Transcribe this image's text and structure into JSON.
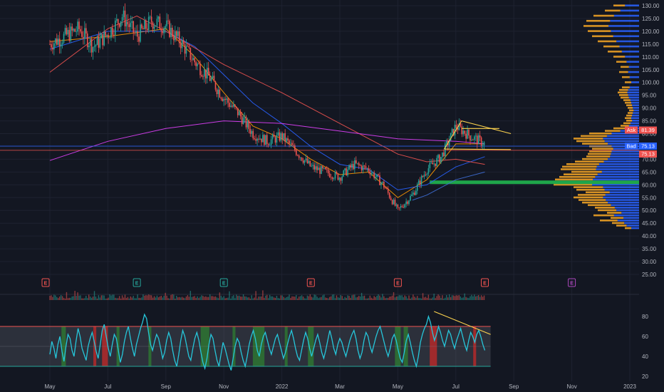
{
  "chart_data": [
    {
      "type": "candlestick",
      "panel": "price",
      "price_scale": {
        "min": 25,
        "max": 130,
        "ticks": [
          "130.00",
          "125.00",
          "120.00",
          "115.00",
          "110.00",
          "105.00",
          "100.00",
          "95.00",
          "90.00",
          "85.00",
          "80.00",
          "75.00",
          "70.00",
          "65.00",
          "60.00",
          "55.00",
          "50.00",
          "45.00",
          "40.00",
          "35.00",
          "30.00",
          "25.00"
        ],
        "tick_values": [
          130,
          125,
          120,
          115,
          110,
          105,
          100,
          95,
          90,
          85,
          80,
          75,
          70,
          65,
          60,
          55,
          50,
          45,
          40,
          35,
          30,
          25
        ]
      },
      "time_axis": {
        "labels": [
          "May",
          "Jul",
          "Sep",
          "Nov",
          "2022",
          "Mar",
          "May",
          "Jul",
          "Sep",
          "Nov",
          "2023"
        ],
        "months_from_start": [
          0,
          2,
          4,
          6,
          8,
          10,
          12,
          14,
          16,
          18,
          20
        ]
      },
      "price_path": [
        [
          0,
          115
        ],
        [
          0.5,
          118
        ],
        [
          1,
          121
        ],
        [
          1.5,
          114
        ],
        [
          2,
          119
        ],
        [
          2.5,
          126
        ],
        [
          3,
          118
        ],
        [
          3.5,
          124
        ],
        [
          4,
          122
        ],
        [
          4.5,
          116
        ],
        [
          5,
          108
        ],
        [
          5.5,
          102
        ],
        [
          6,
          94
        ],
        [
          6.5,
          88
        ],
        [
          7,
          80
        ],
        [
          7.5,
          77
        ],
        [
          8,
          79
        ],
        [
          8.5,
          73
        ],
        [
          9,
          67
        ],
        [
          9.5,
          65
        ],
        [
          10,
          63
        ],
        [
          10.5,
          68
        ],
        [
          11,
          66
        ],
        [
          11.5,
          60
        ],
        [
          12,
          50
        ],
        [
          12.5,
          56
        ],
        [
          13,
          66
        ],
        [
          13.5,
          71
        ],
        [
          14,
          83
        ],
        [
          14.5,
          79
        ],
        [
          15,
          76
        ]
      ],
      "moving_averages": [
        {
          "color": "#ff9800",
          "path": [
            [
              0,
              116
            ],
            [
              2,
              118
            ],
            [
              4,
              121
            ],
            [
              5,
              110
            ],
            [
              6,
              96
            ],
            [
              7,
              83
            ],
            [
              8,
              78
            ],
            [
              9,
              70
            ],
            [
              10,
              64
            ],
            [
              11,
              65
            ],
            [
              12,
              55
            ],
            [
              13,
              62
            ],
            [
              14,
              76
            ],
            [
              15,
              76
            ]
          ]
        },
        {
          "color": "#2962ff",
          "path": [
            [
              0,
              113
            ],
            [
              2,
              120
            ],
            [
              4,
              120
            ],
            [
              5,
              114
            ],
            [
              6,
              103
            ],
            [
              7,
              92
            ],
            [
              8,
              84
            ],
            [
              9,
              75
            ],
            [
              10,
              68
            ],
            [
              11,
              66
            ],
            [
              12,
              58
            ],
            [
              13,
              60
            ],
            [
              14,
              67
            ],
            [
              15,
              71
            ]
          ]
        },
        {
          "color": "#ef5350",
          "path": [
            [
              0,
              104
            ],
            [
              2,
              121
            ],
            [
              3,
              126
            ],
            [
              4,
              120
            ],
            [
              6,
              107
            ],
            [
              8,
              96
            ],
            [
              10,
              84
            ],
            [
              11,
              78
            ],
            [
              12,
              72
            ],
            [
              13,
              69
            ],
            [
              14,
              70
            ],
            [
              15,
              68
            ]
          ]
        },
        {
          "color": "#e040fb",
          "path": [
            [
              0,
              69.5
            ],
            [
              2,
              77
            ],
            [
              4,
              82
            ],
            [
              6,
              85
            ],
            [
              8,
              84
            ],
            [
              10,
              81
            ],
            [
              12,
              78
            ],
            [
              14,
              77
            ],
            [
              15,
              76
            ]
          ]
        },
        {
          "color": "#3f6fd8",
          "path": [
            [
              12.5,
              54
            ],
            [
              13,
              56
            ],
            [
              14,
              62
            ],
            [
              15,
              65
            ]
          ]
        }
      ],
      "volume_profile": {
        "bins": [
          [
            43,
            20
          ],
          [
            44,
            32
          ],
          [
            45,
            38
          ],
          [
            46,
            55
          ],
          [
            47,
            40
          ],
          [
            48,
            64
          ],
          [
            49,
            45
          ],
          [
            50,
            58
          ],
          [
            51,
            62
          ],
          [
            52,
            72
          ],
          [
            53,
            80
          ],
          [
            54,
            85
          ],
          [
            55,
            92
          ],
          [
            56,
            86
          ],
          [
            57,
            75
          ],
          [
            58,
            88
          ],
          [
            59,
            92
          ],
          [
            60,
            120
          ],
          [
            61,
            130
          ],
          [
            62,
            118
          ],
          [
            63,
            112
          ],
          [
            64,
            106
          ],
          [
            65,
            95
          ],
          [
            66,
            110
          ],
          [
            67,
            108
          ],
          [
            68,
            102
          ],
          [
            69,
            90
          ],
          [
            70,
            80
          ],
          [
            71,
            74
          ],
          [
            72,
            72
          ],
          [
            73,
            70
          ],
          [
            74,
            66
          ],
          [
            75,
            70
          ],
          [
            76,
            80
          ],
          [
            77,
            88
          ],
          [
            78,
            92
          ],
          [
            79,
            82
          ],
          [
            80,
            70
          ],
          [
            81,
            48
          ],
          [
            82,
            36
          ],
          [
            83,
            26
          ],
          [
            84,
            22
          ],
          [
            85,
            18
          ],
          [
            86,
            20
          ],
          [
            87,
            18
          ],
          [
            88,
            16
          ],
          [
            89,
            14
          ],
          [
            90,
            16
          ],
          [
            91,
            18
          ],
          [
            92,
            20
          ],
          [
            93,
            22
          ],
          [
            94,
            26
          ],
          [
            95,
            28
          ],
          [
            96,
            30
          ],
          [
            97,
            28
          ],
          [
            98,
            24
          ],
          [
            100,
            20
          ],
          [
            102,
            24
          ],
          [
            104,
            28
          ],
          [
            106,
            26
          ],
          [
            108,
            32
          ],
          [
            110,
            36
          ],
          [
            112,
            44
          ],
          [
            114,
            50
          ],
          [
            116,
            58
          ],
          [
            118,
            66
          ],
          [
            120,
            72
          ],
          [
            122,
            78
          ],
          [
            124,
            74
          ],
          [
            126,
            64
          ],
          [
            128,
            48
          ],
          [
            130,
            36
          ]
        ],
        "poc_price": 61
      },
      "horizontal_lines": [
        {
          "price": 75.13,
          "color": "#2962ff"
        },
        {
          "price": 73.5,
          "color": "#ef5350"
        }
      ],
      "drawings": [
        {
          "type": "triangle",
          "color": "#ffd54f",
          "points": [
            [
              13.6,
              74
            ],
            [
              14.2,
              85
            ],
            [
              15.9,
              80
            ]
          ]
        },
        {
          "type": "line",
          "color": "#ffd54f",
          "points": [
            [
              13.6,
              74
            ],
            [
              15.9,
              73.8
            ]
          ]
        },
        {
          "type": "line",
          "color": "#ffd54f",
          "points": [
            [
              14.2,
              82
            ],
            [
              15.5,
              82
            ]
          ]
        }
      ],
      "price_labels": [
        {
          "label": "Ask",
          "value": "81.39",
          "price": 81.39,
          "color": "#ef5350"
        },
        {
          "label": "Bad",
          "value": "75.13",
          "price": 75.13,
          "color": "#2962ff"
        },
        {
          "label": "",
          "value": "75.13",
          "price": 73.6,
          "color": "#ef5350"
        }
      ],
      "events": [
        {
          "letter": "E",
          "color": "#ef5350",
          "month": 0
        },
        {
          "letter": "E",
          "color": "#26a69a",
          "month": 3
        },
        {
          "letter": "E",
          "color": "#26a69a",
          "month": 6
        },
        {
          "letter": "E",
          "color": "#ef5350",
          "month": 9
        },
        {
          "letter": "E",
          "color": "#ef5350",
          "month": 12
        },
        {
          "letter": "E",
          "color": "#ef5350",
          "month": 15
        },
        {
          "letter": "E",
          "color": "#ab47bc",
          "month": 18
        }
      ]
    },
    {
      "type": "line",
      "panel": "oscillator",
      "ylim": [
        15,
        95
      ],
      "ticks": [
        "80",
        "60",
        "40",
        "20"
      ],
      "tick_values": [
        80,
        60,
        40,
        20
      ],
      "bands": {
        "upper": 70,
        "lower": 30,
        "middle": 50
      },
      "series": [
        {
          "color": "#26c6da",
          "values": [
            42,
            55,
            48,
            38,
            52,
            60,
            45,
            35,
            50,
            62,
            58,
            46,
            40,
            55,
            68,
            60,
            48,
            42,
            36,
            50,
            58,
            64,
            55,
            45,
            38,
            52,
            66,
            72,
            60,
            48,
            40,
            52,
            62,
            58,
            46,
            34,
            42,
            55,
            64,
            70,
            58,
            48,
            40,
            52,
            60,
            68,
            74,
            82,
            78,
            64,
            52,
            46,
            55,
            62,
            58,
            48,
            38,
            44,
            56,
            64,
            58,
            46,
            36,
            30,
            42,
            56,
            66,
            60,
            50,
            40,
            36,
            48,
            58,
            64,
            56,
            44,
            34,
            28,
            38,
            52,
            62,
            58,
            46,
            36,
            30,
            42,
            54,
            48,
            40,
            32,
            26,
            38,
            50,
            58,
            54,
            44,
            36,
            30,
            40,
            52,
            60,
            66,
            58,
            46,
            40,
            52,
            60,
            64,
            56,
            48,
            42,
            50,
            58,
            62,
            54,
            46,
            38,
            44,
            52,
            60,
            66,
            58,
            48,
            40,
            36,
            46,
            56,
            64,
            58,
            48,
            40,
            48,
            56,
            62,
            54,
            44,
            38,
            46,
            56,
            66,
            58,
            48,
            42,
            52,
            58,
            54,
            46,
            40,
            48,
            56,
            62,
            66,
            58,
            46,
            38,
            44,
            56,
            64,
            60,
            50,
            44,
            52,
            60,
            66,
            70,
            62,
            54,
            46,
            40,
            48,
            58,
            62,
            56,
            46,
            38,
            34,
            44,
            56,
            62,
            54,
            44,
            36,
            30,
            40,
            54,
            62,
            68,
            72,
            80,
            74,
            64,
            56,
            62,
            70,
            64,
            56,
            50,
            58,
            66,
            62,
            54,
            48,
            56,
            62,
            68,
            60,
            52,
            46,
            56,
            64,
            60,
            54,
            62,
            66,
            60,
            52,
            46
          ]
        }
      ],
      "shaded_zones": [
        {
          "color": "#2e7d32",
          "months": [
            0.4,
            0.55
          ]
        },
        {
          "color": "#c62828",
          "months": [
            1.5,
            1.6
          ]
        },
        {
          "color": "#c62828",
          "months": [
            1.8,
            2.0
          ]
        },
        {
          "color": "#2e7d32",
          "months": [
            2.3,
            2.4
          ]
        },
        {
          "color": "#2e7d32",
          "months": [
            3.4,
            3.5
          ]
        },
        {
          "color": "#2e7d32",
          "months": [
            5.2,
            5.5
          ]
        },
        {
          "color": "#2e7d32",
          "months": [
            6.3,
            6.4
          ]
        },
        {
          "color": "#2e7d32",
          "months": [
            7.0,
            7.4
          ]
        },
        {
          "color": "#2e7d32",
          "months": [
            8.1,
            8.2
          ]
        },
        {
          "color": "#2e7d32",
          "months": [
            8.9,
            9.1
          ]
        },
        {
          "color": "#2e7d32",
          "months": [
            11.9,
            12.1
          ]
        },
        {
          "color": "#2e7d32",
          "months": [
            12.2,
            12.35
          ]
        },
        {
          "color": "#c62828",
          "months": [
            13.1,
            13.35
          ]
        },
        {
          "color": "#c62828",
          "months": [
            14.6,
            14.7
          ]
        }
      ],
      "divergence_line": {
        "color": "#ffd54f",
        "points": [
          [
            13.25,
            85
          ],
          [
            15.2,
            62
          ]
        ]
      }
    }
  ]
}
